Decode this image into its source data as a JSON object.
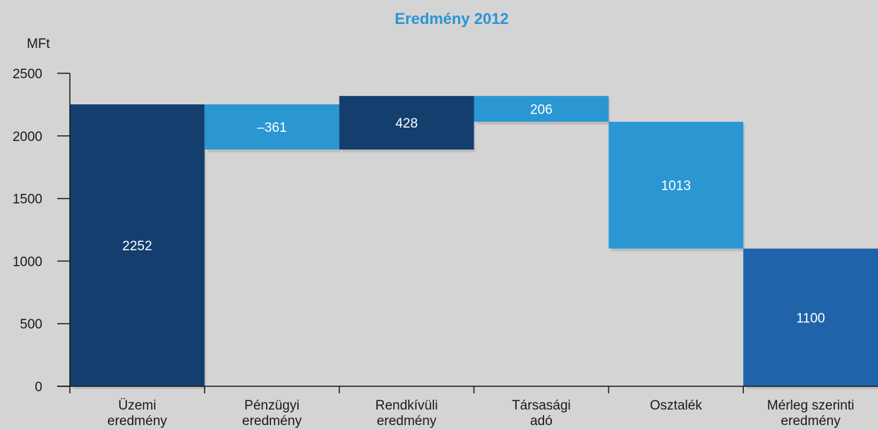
{
  "chart_data": {
    "type": "bar",
    "subtype": "waterfall",
    "title": "Eredmény 2012",
    "ylabel": "MFt",
    "ylim": [
      0,
      2500
    ],
    "yticks": [
      0,
      500,
      1000,
      1500,
      2000,
      2500
    ],
    "grid": false,
    "categories": [
      [
        "Üzemi",
        "eredmény"
      ],
      [
        "Pénzügyi",
        "eredmény"
      ],
      [
        "Rendkívüli",
        "eredmény"
      ],
      [
        "Társasági",
        "adó"
      ],
      [
        "Osztalék"
      ],
      [
        "Mérleg szerinti",
        "eredmény"
      ]
    ],
    "bars": [
      {
        "label": "2252",
        "bottom": 0,
        "top": 2252
      },
      {
        "label": "–361",
        "bottom": 1891,
        "top": 2252
      },
      {
        "label": "428",
        "bottom": 1891,
        "top": 2319
      },
      {
        "label": "206",
        "bottom": 2113,
        "top": 2319
      },
      {
        "label": "1013",
        "bottom": 1100,
        "top": 2113
      },
      {
        "label": "1100",
        "bottom": 0,
        "top": 1100
      }
    ]
  },
  "colors": {
    "title": "#2a95d0",
    "dark_navy": "#133e6e",
    "light_blue": "#2a97d3",
    "mid_blue": "#1f63aa",
    "axis": "#1a1a1a",
    "label": "#ffffff",
    "bar_colors": [
      "#133e6e",
      "#2a97d3",
      "#133e6e",
      "#2a97d3",
      "#2a97d3",
      "#1f63aa"
    ]
  }
}
